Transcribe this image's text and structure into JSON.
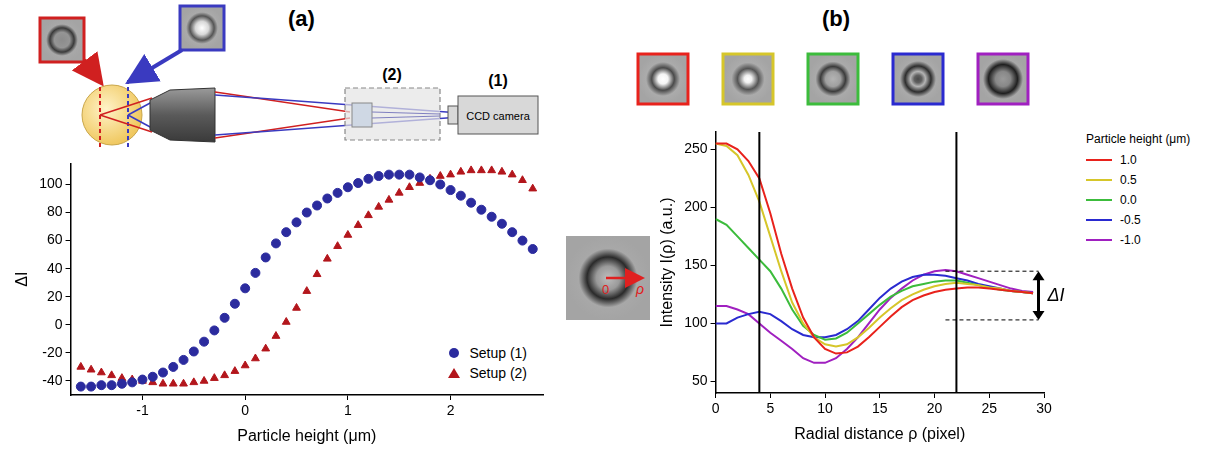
{
  "panels": [
    "(a)",
    "(b)"
  ],
  "schematic": {
    "optics_label": "(2)",
    "camera_label": "(1)",
    "camera": "CCD camera"
  },
  "inset": {
    "origin_label": "0",
    "axis_label": "ρ"
  },
  "chart_data": [
    {
      "type": "scatter",
      "x_label": "Particle height (μm)",
      "y_label": "ΔI",
      "x": [
        -1.6,
        -1.5,
        -1.4,
        -1.3,
        -1.2,
        -1.1,
        -1.0,
        -0.9,
        -0.8,
        -0.7,
        -0.6,
        -0.5,
        -0.4,
        -0.3,
        -0.2,
        -0.1,
        0.0,
        0.1,
        0.2,
        0.3,
        0.4,
        0.5,
        0.6,
        0.7,
        0.8,
        0.9,
        1.0,
        1.1,
        1.2,
        1.3,
        1.4,
        1.5,
        1.6,
        1.7,
        1.8,
        1.9,
        2.0,
        2.1,
        2.2,
        2.3,
        2.4,
        2.5,
        2.6,
        2.7,
        2.8
      ],
      "series": [
        {
          "name": "Setup (1)",
          "color": "#2b2b9e",
          "marker": "circle",
          "values": [
            -44,
            -44,
            -43,
            -43,
            -42,
            -41,
            -39,
            -37,
            -34,
            -30,
            -25,
            -19,
            -12,
            -4,
            5,
            15,
            26,
            37,
            48,
            58,
            66,
            73,
            80,
            85,
            90,
            94,
            98,
            101,
            104,
            106,
            107,
            107,
            107,
            105,
            103,
            100,
            96,
            92,
            87,
            82,
            77,
            72,
            66,
            60,
            54
          ]
        },
        {
          "name": "Setup (2)",
          "color": "#b3161c",
          "marker": "triangle",
          "values": [
            -30,
            -32,
            -34,
            -36,
            -38,
            -39,
            -40,
            -41,
            -42,
            -42,
            -42,
            -41,
            -40,
            -38,
            -36,
            -33,
            -29,
            -24,
            -17,
            -8,
            2,
            12,
            24,
            36,
            47,
            56,
            64,
            71,
            78,
            84,
            89,
            94,
            98,
            101,
            104,
            106,
            107,
            109,
            110,
            110,
            110,
            109,
            107,
            103,
            97
          ]
        }
      ],
      "xlim": [
        -1.7,
        2.9
      ],
      "ylim": [
        -50,
        115
      ],
      "xticks": [
        -1,
        0,
        1,
        2
      ],
      "yticks": [
        -40,
        -20,
        0,
        20,
        40,
        60,
        80,
        100
      ],
      "grid": false,
      "legend": "lower right"
    },
    {
      "type": "line",
      "x_label": "Radial distance ρ (pixel)",
      "y_label": "Intensity I(ρ) (a.u.)",
      "legend_title": "Particle height (μm)",
      "x": [
        0,
        1,
        2,
        3,
        4,
        5,
        6,
        7,
        8,
        9,
        10,
        11,
        12,
        13,
        14,
        15,
        16,
        17,
        18,
        19,
        20,
        21,
        22,
        23,
        24,
        25,
        26,
        27,
        28,
        29
      ],
      "series": [
        {
          "name": "1.0",
          "color": "#e8221c",
          "values": [
            255,
            255,
            250,
            240,
            225,
            195,
            160,
            130,
            105,
            88,
            78,
            74,
            75,
            80,
            88,
            97,
            106,
            114,
            120,
            124,
            127,
            129,
            130,
            131,
            131,
            130,
            129,
            128,
            127,
            126
          ]
        },
        {
          "name": "0.5",
          "color": "#d6c62a",
          "values": [
            255,
            253,
            245,
            228,
            205,
            175,
            145,
            118,
            100,
            88,
            82,
            80,
            82,
            88,
            96,
            105,
            113,
            120,
            125,
            129,
            132,
            134,
            135,
            134,
            133,
            131,
            130,
            128,
            127,
            126
          ]
        },
        {
          "name": "0.0",
          "color": "#3cbc3c",
          "values": [
            190,
            185,
            175,
            165,
            155,
            145,
            130,
            112,
            98,
            90,
            86,
            87,
            92,
            100,
            108,
            116,
            123,
            128,
            132,
            134,
            136,
            137,
            137,
            135,
            133,
            131,
            129,
            128,
            127,
            126
          ]
        },
        {
          "name": "-0.5",
          "color": "#2a2ad0",
          "values": [
            100,
            100,
            105,
            108,
            110,
            108,
            102,
            95,
            90,
            88,
            88,
            90,
            95,
            102,
            112,
            122,
            130,
            136,
            140,
            142,
            142,
            141,
            139,
            137,
            134,
            132,
            130,
            128,
            127,
            126
          ]
        },
        {
          "name": "-1.0",
          "color": "#a020c0",
          "values": [
            115,
            115,
            112,
            108,
            100,
            92,
            85,
            78,
            70,
            66,
            66,
            70,
            78,
            88,
            100,
            112,
            122,
            130,
            137,
            142,
            145,
            146,
            145,
            142,
            139,
            136,
            133,
            130,
            128,
            127
          ]
        }
      ],
      "xlim": [
        0,
        30
      ],
      "ylim": [
        40,
        265
      ],
      "xticks": [
        0,
        5,
        10,
        15,
        20,
        25,
        30
      ],
      "yticks": [
        50,
        100,
        150,
        200,
        250
      ],
      "grid": false,
      "legend": "right",
      "vlines": [
        4,
        22
      ],
      "annotations": [
        {
          "text": "ΔI",
          "x_range": [
            21,
            29.5
          ],
          "y_range": [
            103,
            145
          ]
        }
      ]
    }
  ]
}
